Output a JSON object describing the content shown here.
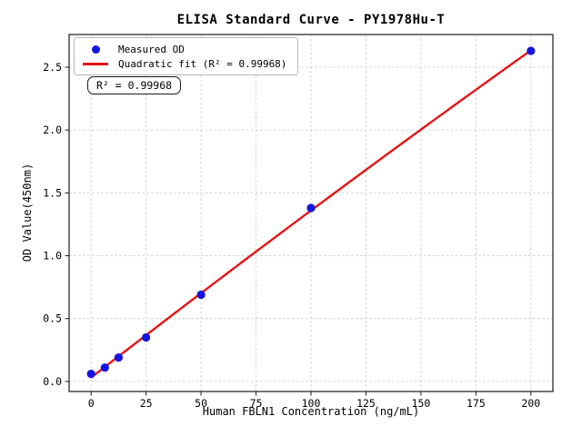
{
  "chart_data": {
    "type": "scatter",
    "title": "ELISA Standard Curve - PY1978Hu-T",
    "xlabel": "Human FBLN1 Concentration (ng/mL)",
    "ylabel": "OD Value(450nm)",
    "xlim": [
      -10,
      210
    ],
    "ylim": [
      -0.08,
      2.76
    ],
    "grid": true,
    "grid_color": "#cccccc",
    "x_ticks": {
      "values": [
        0,
        25,
        50,
        75,
        100,
        125,
        150,
        175,
        200
      ],
      "labels": [
        "0",
        "25",
        "50",
        "75",
        "100",
        "125",
        "150",
        "175",
        "200"
      ]
    },
    "y_ticks": {
      "values": [
        0.0,
        0.5,
        1.0,
        1.5,
        2.0,
        2.5
      ],
      "labels": [
        "0.0",
        "0.5",
        "1.0",
        "1.5",
        "2.0",
        "2.5"
      ]
    },
    "series": [
      {
        "name": "Measured OD",
        "kind": "scatter",
        "color": "#1414e0",
        "x": [
          0,
          6.25,
          12.5,
          25,
          50,
          100,
          200
        ],
        "y": [
          0.06,
          0.11,
          0.19,
          0.35,
          0.69,
          1.38,
          2.63
        ]
      },
      {
        "name": "Quadratic fit (R² = 0.99968)",
        "kind": "quadratic-fit-line",
        "color": "#e31414",
        "r_squared": "0.99968"
      }
    ],
    "legend": {
      "position": "upper left",
      "entries": [
        "Measured OD",
        "Quadratic fit (R² = 0.99968)"
      ]
    },
    "annotation": "R² = 0.99968"
  }
}
